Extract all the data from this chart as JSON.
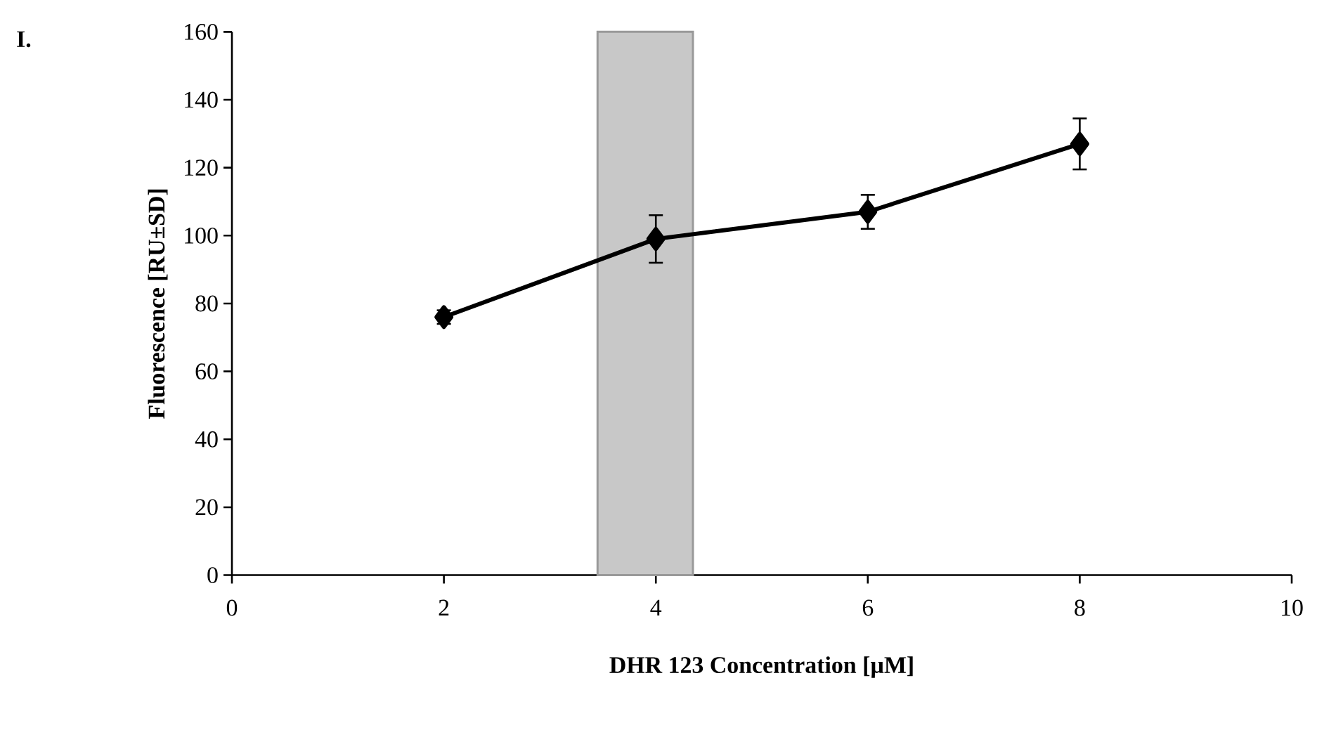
{
  "chart_data": {
    "type": "line",
    "xlabel": "DHR 123 Concentration [µM]",
    "ylabel": "Fluorescence [RU±SD]",
    "annotations": [
      "I."
    ],
    "x": [
      2,
      4,
      6,
      8
    ],
    "series": [
      {
        "color": "#000000",
        "values": [
          76,
          99,
          107,
          127
        ],
        "errors": [
          2,
          7,
          5,
          7.5
        ]
      }
    ],
    "xlim": [
      0,
      10
    ],
    "ylim": [
      0,
      160
    ],
    "xticks": [
      0,
      2,
      4,
      6,
      8,
      10
    ],
    "yticks": [
      0,
      20,
      40,
      60,
      80,
      100,
      120,
      140,
      160
    ],
    "marker": "diamond",
    "line_style": "solid",
    "bands": [
      {
        "axis": "x",
        "from": 3.45,
        "to": 4.35,
        "color": "#c8c8c8"
      }
    ]
  }
}
